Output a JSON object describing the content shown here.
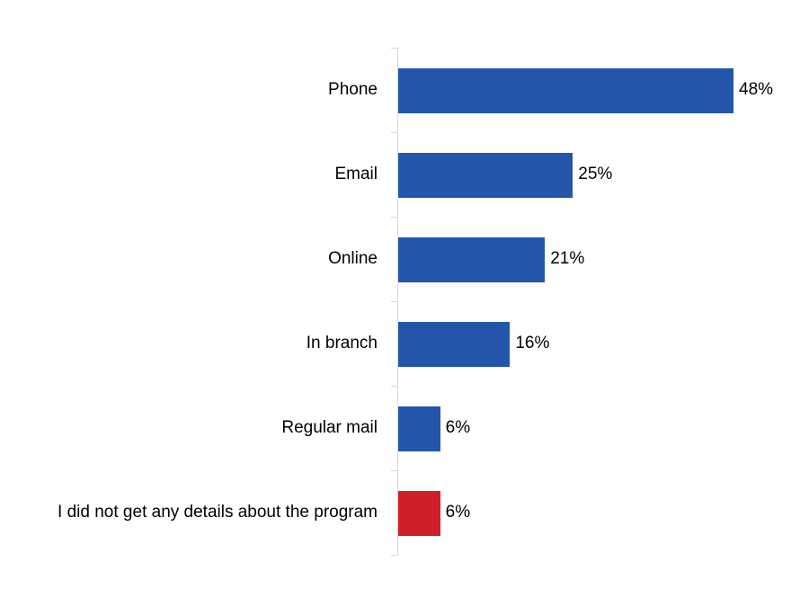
{
  "chart_data": {
    "type": "bar",
    "orientation": "horizontal",
    "title": "",
    "xlabel": "",
    "ylabel": "",
    "categories": [
      "Phone",
      "Email",
      "Online",
      "In branch",
      "Regular mail",
      "I did not get any details about the program"
    ],
    "values": [
      48,
      25,
      21,
      16,
      6,
      6
    ],
    "value_labels": [
      "48%",
      "25%",
      "21%",
      "16%",
      "6%",
      "6%"
    ],
    "colors": [
      "#2356ab",
      "#2356ab",
      "#2356ab",
      "#2356ab",
      "#2356ab",
      "#cf202a"
    ],
    "xlim": [
      0,
      50
    ],
    "grid": false,
    "legend": null,
    "data_labels": true
  },
  "colors": {
    "primary_bar": "#2356ab",
    "highlight_bar": "#cf202a",
    "axis": "#d9d9d9"
  }
}
